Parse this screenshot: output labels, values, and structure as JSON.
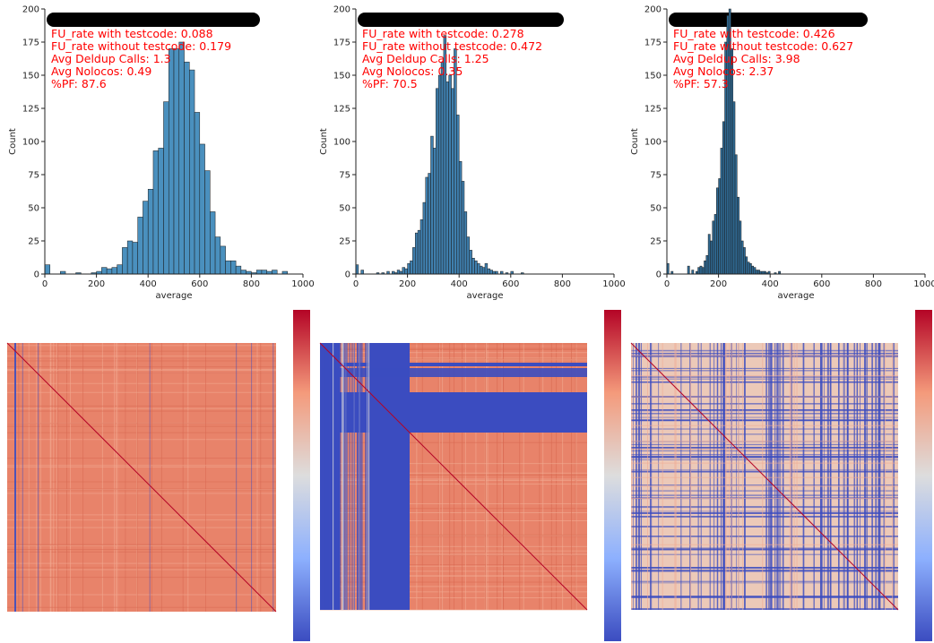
{
  "chart_data": [
    {
      "type": "bar",
      "title": "",
      "xlabel": "average",
      "ylabel": "Count",
      "xlim": [
        0,
        1000
      ],
      "ylim": [
        0,
        200
      ],
      "xticks": [
        "0",
        "200",
        "400",
        "600",
        "800",
        "1000"
      ],
      "yticks": [
        "0",
        "25",
        "50",
        "75",
        "100",
        "125",
        "150",
        "175",
        "200"
      ],
      "bar_color": "#4a90be",
      "bin_width": 20,
      "bins": [
        [
          0,
          7
        ],
        [
          60,
          2
        ],
        [
          120,
          1
        ],
        [
          180,
          1
        ],
        [
          200,
          2
        ],
        [
          220,
          5
        ],
        [
          240,
          4
        ],
        [
          260,
          5
        ],
        [
          280,
          7
        ],
        [
          300,
          20
        ],
        [
          320,
          25
        ],
        [
          340,
          24
        ],
        [
          360,
          43
        ],
        [
          380,
          55
        ],
        [
          400,
          64
        ],
        [
          420,
          93
        ],
        [
          440,
          95
        ],
        [
          460,
          130
        ],
        [
          480,
          170
        ],
        [
          500,
          170
        ],
        [
          520,
          175
        ],
        [
          540,
          160
        ],
        [
          560,
          154
        ],
        [
          580,
          122
        ],
        [
          600,
          98
        ],
        [
          620,
          78
        ],
        [
          640,
          47
        ],
        [
          660,
          28
        ],
        [
          680,
          21
        ],
        [
          700,
          10
        ],
        [
          720,
          10
        ],
        [
          740,
          6
        ],
        [
          760,
          3
        ],
        [
          780,
          2
        ],
        [
          800,
          1
        ],
        [
          820,
          3
        ],
        [
          840,
          3
        ],
        [
          860,
          2
        ],
        [
          880,
          3
        ],
        [
          920,
          2
        ]
      ],
      "annotations": [
        "FU_rate with testcode: 0.088",
        "FU_rate without testcode: 0.179",
        "Avg Deldup Calls: 1.3",
        "Avg Nolocos: 0.49",
        "%PF: 87.6"
      ]
    },
    {
      "type": "bar",
      "title": "",
      "xlabel": "average",
      "ylabel": "Count",
      "xlim": [
        0,
        1000
      ],
      "ylim": [
        0,
        200
      ],
      "xticks": [
        "0",
        "200",
        "400",
        "600",
        "800",
        "1000"
      ],
      "yticks": [
        "0",
        "25",
        "50",
        "75",
        "100",
        "125",
        "150",
        "175",
        "200"
      ],
      "bar_color": "#3f7fae",
      "bin_width": 10,
      "bins": [
        [
          0,
          7
        ],
        [
          20,
          3
        ],
        [
          80,
          1
        ],
        [
          100,
          1
        ],
        [
          120,
          2
        ],
        [
          140,
          2
        ],
        [
          150,
          1
        ],
        [
          160,
          3
        ],
        [
          170,
          2
        ],
        [
          180,
          5
        ],
        [
          190,
          4
        ],
        [
          200,
          8
        ],
        [
          210,
          10
        ],
        [
          220,
          20
        ],
        [
          230,
          31
        ],
        [
          240,
          33
        ],
        [
          250,
          41
        ],
        [
          260,
          54
        ],
        [
          270,
          73
        ],
        [
          280,
          76
        ],
        [
          290,
          104
        ],
        [
          300,
          95
        ],
        [
          310,
          140
        ],
        [
          320,
          150
        ],
        [
          330,
          160
        ],
        [
          340,
          180
        ],
        [
          350,
          145
        ],
        [
          360,
          150
        ],
        [
          370,
          140
        ],
        [
          380,
          170
        ],
        [
          390,
          120
        ],
        [
          400,
          85
        ],
        [
          410,
          70
        ],
        [
          420,
          47
        ],
        [
          430,
          28
        ],
        [
          440,
          18
        ],
        [
          450,
          12
        ],
        [
          460,
          10
        ],
        [
          470,
          8
        ],
        [
          480,
          6
        ],
        [
          490,
          5
        ],
        [
          500,
          8
        ],
        [
          510,
          4
        ],
        [
          520,
          3
        ],
        [
          530,
          2
        ],
        [
          540,
          2
        ],
        [
          560,
          2
        ],
        [
          580,
          1
        ],
        [
          600,
          2
        ],
        [
          640,
          1
        ]
      ],
      "annotations": [
        "FU_rate with testcode: 0.278",
        "FU_rate without testcode: 0.472",
        "Avg Deldup Calls: 1.25",
        "Avg Nolocos: 0.35",
        "%PF: 70.5"
      ]
    },
    {
      "type": "bar",
      "title": "",
      "xlabel": "average",
      "ylabel": "Count",
      "xlim": [
        0,
        1000
      ],
      "ylim": [
        0,
        200
      ],
      "xticks": [
        "0",
        "200",
        "400",
        "600",
        "800",
        "1000"
      ],
      "yticks": [
        "0",
        "25",
        "50",
        "75",
        "100",
        "125",
        "150",
        "175",
        "200"
      ],
      "bar_color": "#2f6a94",
      "bin_width": 8,
      "bins": [
        [
          0,
          8
        ],
        [
          16,
          2
        ],
        [
          80,
          6
        ],
        [
          96,
          3
        ],
        [
          112,
          2
        ],
        [
          120,
          5
        ],
        [
          128,
          6
        ],
        [
          136,
          5
        ],
        [
          144,
          10
        ],
        [
          152,
          14
        ],
        [
          160,
          30
        ],
        [
          168,
          25
        ],
        [
          176,
          40
        ],
        [
          184,
          45
        ],
        [
          192,
          65
        ],
        [
          200,
          72
        ],
        [
          208,
          95
        ],
        [
          216,
          115
        ],
        [
          224,
          175
        ],
        [
          232,
          195
        ],
        [
          240,
          200
        ],
        [
          248,
          170
        ],
        [
          256,
          130
        ],
        [
          264,
          90
        ],
        [
          272,
          58
        ],
        [
          280,
          40
        ],
        [
          288,
          25
        ],
        [
          296,
          20
        ],
        [
          304,
          13
        ],
        [
          312,
          9
        ],
        [
          320,
          8
        ],
        [
          328,
          6
        ],
        [
          336,
          5
        ],
        [
          344,
          3
        ],
        [
          352,
          3
        ],
        [
          360,
          2
        ],
        [
          368,
          2
        ],
        [
          376,
          2
        ],
        [
          384,
          1
        ],
        [
          392,
          2
        ],
        [
          416,
          1
        ],
        [
          432,
          2
        ]
      ],
      "annotations": [
        "FU_rate with testcode: 0.426",
        "FU_rate without testcode: 0.627",
        "Avg Deldup Calls: 3.98",
        "Avg Nolocos: 2.37",
        "%PF: 57.3"
      ]
    },
    {
      "type": "heatmap",
      "colormap": "coolwarm",
      "colorbar": true,
      "description_level": "mostly warm (high correlation) with a few cool stripes",
      "pattern": "uniform_warm"
    },
    {
      "type": "heatmap",
      "colormap": "coolwarm",
      "colorbar": true,
      "pattern": "block_cool_band"
    },
    {
      "type": "heatmap",
      "colormap": "coolwarm",
      "colorbar": true,
      "pattern": "mixed_grid"
    }
  ],
  "colors": {
    "annotation": "#ff0000",
    "redaction": "#000000",
    "coolwarm_low": "#3b4cc0",
    "coolwarm_mid": "#dddddd",
    "coolwarm_high": "#b40426",
    "heat_warm": "#e8836a",
    "heat_warm_light": "#f2ab93"
  }
}
